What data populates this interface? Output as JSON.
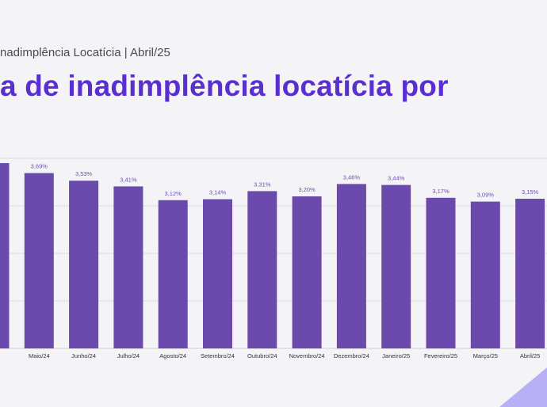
{
  "header": {
    "subtitle": "nadimplência Locatícia | Abril/25",
    "title": "a de inadimplência locatícia por"
  },
  "colors": {
    "bar": "#6a4aac",
    "title": "#5a2fd0",
    "deco": "#b8b0f7"
  },
  "chart_data": {
    "type": "bar",
    "categories": [
      "",
      "Maio/24",
      "Junho/24",
      "Julho/24",
      "Agosto/24",
      "Setembro/24",
      "Outubro/24",
      "Novembro/24",
      "Dezembro/24",
      "Janeiro/25",
      "Fevereiro/25",
      "Março/25",
      "Abril/25"
    ],
    "values": [
      3.9,
      3.69,
      3.53,
      3.41,
      3.12,
      3.14,
      3.31,
      3.2,
      3.46,
      3.44,
      3.17,
      3.09,
      3.15
    ],
    "value_labels": [
      "",
      "3,69%",
      "3,53%",
      "3,41%",
      "3,12%",
      "3,14%",
      "3,31%",
      "3,20%",
      "3,46%",
      "3,44%",
      "3,17%",
      "3,09%",
      "3,15%"
    ],
    "ylim": [
      0,
      4
    ],
    "grid": true,
    "legend": "none"
  }
}
